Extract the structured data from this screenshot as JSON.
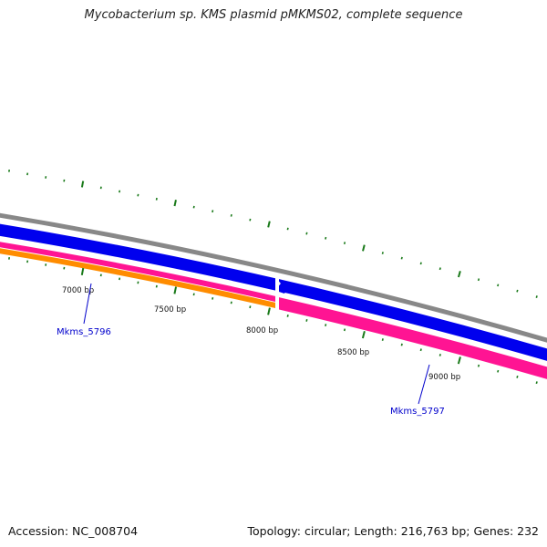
{
  "map": {
    "title": "Mycobacterium sp. KMS plasmid pMKMS02, complete sequence",
    "accession": "Accession: NC_008704",
    "summary": "Topology: circular; Length: 216,763 bp; Genes: 232"
  },
  "scale_labels": [
    "7000 bp",
    "7500 bp",
    "8000 bp",
    "8500 bp",
    "9000 bp"
  ],
  "genes": [
    {
      "label": "Mkms_5796",
      "color": "#0000cc"
    },
    {
      "label": "Mkms_5797",
      "color": "#0000cc"
    }
  ],
  "tracks": {
    "backbone": "#888888",
    "forward_cds": "#0000ee",
    "reverse_gene": "#ff1493",
    "reverse_other": "#ff8c00",
    "tick": "#1a7a1a"
  }
}
